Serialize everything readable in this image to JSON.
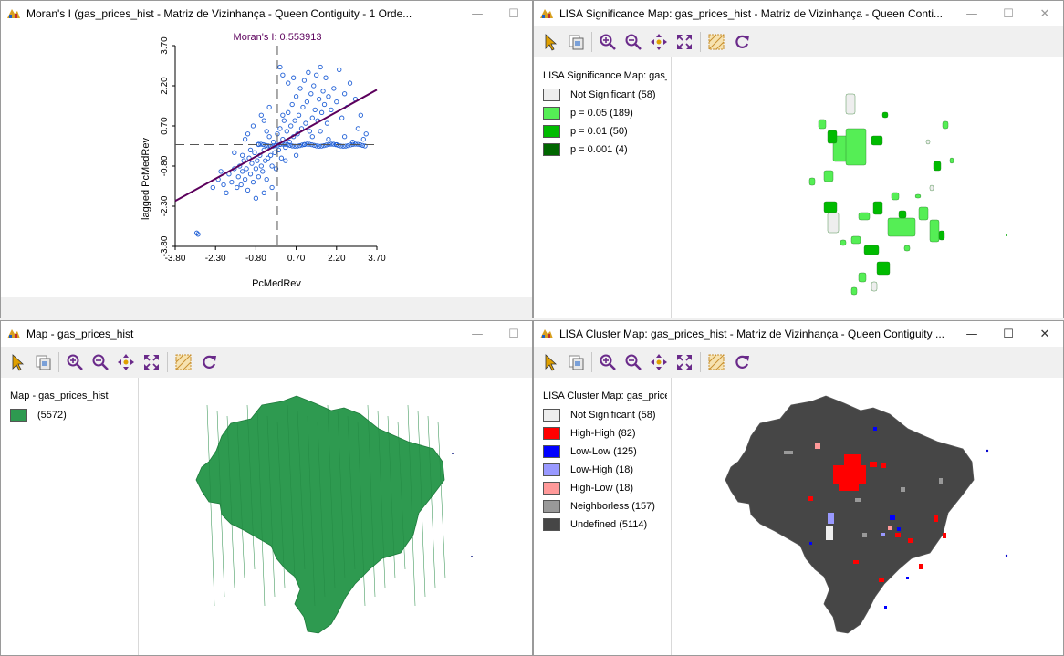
{
  "colors": {
    "green": "#2e9a50",
    "not_significant": "#eeeeee",
    "p05": "#55ee55",
    "p01": "#00bb00",
    "p001": "#006600",
    "high_high": "#ff0000",
    "low_low": "#0000ff",
    "low_high": "#9999ff",
    "high_low": "#ff9999",
    "neighborless": "#999999",
    "undefined": "#464646",
    "scatter_point": "#1f5fd6",
    "regression": "#5c005c"
  },
  "windows": {
    "moran": {
      "title": "Moran's I (gas_prices_hist - Matriz de Vizinhança - Queen Contiguity - 1 Orde...",
      "icon": "geoda-icon"
    },
    "lisa_sig": {
      "title": "LISA Significance Map: gas_prices_hist - Matriz de Vizinhança - Queen Conti...",
      "legend_title": "LISA Significance Map: gas_",
      "legend": [
        {
          "label": "Not Significant (58)",
          "color": "#eeeeee"
        },
        {
          "label": "p = 0.05 (189)",
          "color": "#55ee55"
        },
        {
          "label": "p = 0.01 (50)",
          "color": "#00bb00"
        },
        {
          "label": "p = 0.001 (4)",
          "color": "#006600"
        }
      ]
    },
    "map": {
      "title": "Map - gas_prices_hist",
      "legend_title": "Map - gas_prices_hist",
      "legend": [
        {
          "label": "(5572)",
          "color": "#2e9a50"
        }
      ]
    },
    "lisa_cluster": {
      "title": "LISA Cluster Map: gas_prices_hist - Matriz de Vizinhança - Queen Contiguity ...",
      "legend_title": "LISA Cluster Map: gas_price",
      "legend": [
        {
          "label": "Not Significant (58)",
          "color": "#eeeeee"
        },
        {
          "label": "High-High (82)",
          "color": "#ff0000"
        },
        {
          "label": "Low-Low (125)",
          "color": "#0000ff"
        },
        {
          "label": "Low-High (18)",
          "color": "#9999ff"
        },
        {
          "label": "High-Low (18)",
          "color": "#ff9999"
        },
        {
          "label": "Neighborless (157)",
          "color": "#999999"
        },
        {
          "label": "Undefined (5114)",
          "color": "#464646"
        }
      ]
    }
  },
  "toolbar_icons": [
    "select-icon",
    "copy-icon",
    "zoom-in-icon",
    "zoom-out-icon",
    "pan-icon",
    "fit-icon",
    "selectable-fill-icon",
    "refresh-icon"
  ],
  "chart_data": {
    "type": "scatter",
    "title": "Moran's I: 0.553913",
    "xlabel": "PcMedRev",
    "ylabel": "lagged PcMedRev",
    "xlim": [
      -3.8,
      3.7
    ],
    "ylim": [
      -3.8,
      3.7
    ],
    "xticks": [
      "-3.80",
      "-2.30",
      "-0.80",
      "0.70",
      "2.20",
      "3.70"
    ],
    "yticks": [
      "-3.80",
      "-2.30",
      "-0.80",
      "0.70",
      "2.20",
      "3.70"
    ],
    "slope": 0.553913,
    "mean_lines": {
      "x": 0,
      "y": 0
    },
    "points": [
      [
        -3.0,
        -3.3
      ],
      [
        -2.95,
        -3.35
      ],
      [
        -2.4,
        -1.6
      ],
      [
        -2.2,
        -1.3
      ],
      [
        -2.0,
        -1.5
      ],
      [
        -1.9,
        -1.8
      ],
      [
        -1.8,
        -1.1
      ],
      [
        -1.7,
        -1.4
      ],
      [
        -1.6,
        -0.9
      ],
      [
        -1.5,
        -1.6
      ],
      [
        -1.45,
        -1.2
      ],
      [
        -1.4,
        -0.8
      ],
      [
        -1.35,
        -1.5
      ],
      [
        -1.3,
        -1.0
      ],
      [
        -1.25,
        -0.6
      ],
      [
        -1.2,
        -1.3
      ],
      [
        -1.15,
        -0.9
      ],
      [
        -1.1,
        -1.7
      ],
      [
        -1.05,
        -0.5
      ],
      [
        -1.0,
        -1.1
      ],
      [
        -0.95,
        -0.7
      ],
      [
        -0.9,
        -1.4
      ],
      [
        -0.85,
        -0.3
      ],
      [
        -0.8,
        -0.9
      ],
      [
        -0.75,
        -0.6
      ],
      [
        -0.7,
        -1.2
      ],
      [
        -0.65,
        -0.4
      ],
      [
        -0.6,
        -0.8
      ],
      [
        -0.55,
        -1.0
      ],
      [
        -0.5,
        -0.2
      ],
      [
        -0.45,
        -0.6
      ],
      [
        -0.4,
        -1.3
      ],
      [
        -0.35,
        -0.5
      ],
      [
        -0.3,
        0.3
      ],
      [
        -0.25,
        -0.4
      ],
      [
        -0.2,
        -0.8
      ],
      [
        -0.15,
        0.1
      ],
      [
        -0.1,
        -0.3
      ],
      [
        -0.05,
        -0.9
      ],
      [
        0.0,
        0.4
      ],
      [
        0.05,
        -0.2
      ],
      [
        0.1,
        0.6
      ],
      [
        0.15,
        -0.5
      ],
      [
        0.2,
        0.2
      ],
      [
        0.25,
        0.9
      ],
      [
        0.3,
        -0.1
      ],
      [
        0.35,
        0.5
      ],
      [
        0.4,
        1.2
      ],
      [
        0.45,
        0.1
      ],
      [
        0.5,
        0.7
      ],
      [
        0.55,
        1.5
      ],
      [
        0.6,
        0.3
      ],
      [
        0.65,
        0.9
      ],
      [
        0.7,
        1.8
      ],
      [
        0.75,
        0.4
      ],
      [
        0.8,
        1.1
      ],
      [
        0.85,
        2.1
      ],
      [
        0.9,
        0.6
      ],
      [
        0.95,
        1.4
      ],
      [
        1.0,
        2.4
      ],
      [
        1.05,
        0.8
      ],
      [
        1.1,
        1.6
      ],
      [
        1.15,
        2.7
      ],
      [
        1.2,
        0.5
      ],
      [
        1.25,
        1.9
      ],
      [
        1.3,
        1.0
      ],
      [
        1.35,
        2.2
      ],
      [
        1.4,
        1.3
      ],
      [
        1.45,
        2.6
      ],
      [
        1.5,
        0.9
      ],
      [
        1.55,
        1.7
      ],
      [
        1.6,
        2.9
      ],
      [
        1.65,
        1.2
      ],
      [
        1.7,
        2.0
      ],
      [
        1.75,
        1.5
      ],
      [
        1.8,
        2.5
      ],
      [
        1.85,
        0.8
      ],
      [
        1.9,
        1.8
      ],
      [
        2.0,
        1.3
      ],
      [
        2.1,
        2.1
      ],
      [
        2.2,
        1.6
      ],
      [
        2.3,
        2.8
      ],
      [
        2.4,
        1.0
      ],
      [
        2.5,
        1.9
      ],
      [
        2.6,
        1.4
      ],
      [
        2.7,
        2.3
      ],
      [
        2.9,
        1.7
      ],
      [
        3.0,
        0.6
      ],
      [
        3.1,
        1.1
      ],
      [
        3.3,
        0.4
      ],
      [
        0.1,
        2.9
      ],
      [
        0.2,
        2.6
      ],
      [
        0.4,
        2.3
      ],
      [
        -0.3,
        1.4
      ],
      [
        -0.5,
        0.9
      ],
      [
        -0.6,
        1.1
      ],
      [
        -1.2,
        0.2
      ],
      [
        -0.9,
        0.7
      ],
      [
        0.2,
        1.1
      ],
      [
        0.6,
        2.5
      ],
      [
        -1.0,
        -0.2
      ],
      [
        -1.3,
        -0.4
      ],
      [
        -0.7,
        0.0
      ],
      [
        -0.4,
        0.5
      ],
      [
        -2.1,
        -1.0
      ],
      [
        -1.6,
        -0.3
      ],
      [
        -1.1,
        0.4
      ],
      [
        0.3,
        -0.6
      ],
      [
        0.7,
        -0.4
      ],
      [
        1.0,
        0.0
      ],
      [
        1.3,
        0.3
      ],
      [
        1.6,
        0.5
      ],
      [
        1.9,
        0.2
      ],
      [
        2.2,
        0.0
      ],
      [
        2.5,
        0.3
      ],
      [
        2.8,
        0.1
      ],
      [
        3.2,
        0.2
      ],
      [
        -0.2,
        -1.6
      ],
      [
        -0.5,
        -1.8
      ],
      [
        -0.8,
        -2.0
      ]
    ]
  }
}
